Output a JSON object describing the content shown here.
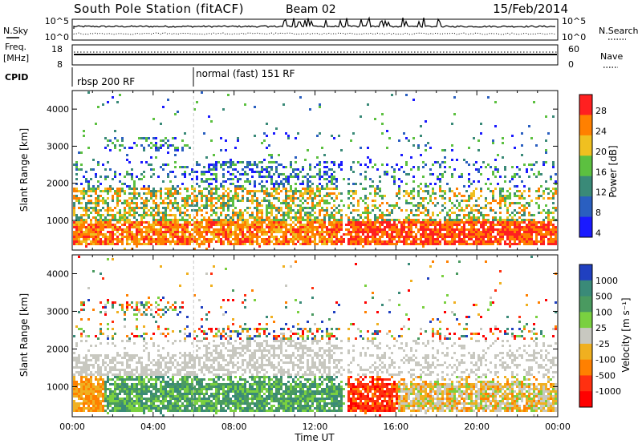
{
  "header": {
    "station": "South Pole Station (fitACF)",
    "beam": "Beam 02",
    "date": "15/Feb/2014"
  },
  "side_labels": {
    "nsky": "N.Sky",
    "freq_line1": "Freq.",
    "freq_line2": "[MHz]",
    "cpid": "CPID",
    "nsearch": "N.Search",
    "nave": "Nave"
  },
  "top_panel": {
    "left_ticks": [
      "10^5",
      "10^0"
    ],
    "right_ticks": [
      "10^5",
      "10^0"
    ]
  },
  "freq_panel": {
    "left_ticks": [
      "18",
      "8"
    ],
    "right_ticks": [
      "60",
      "0"
    ]
  },
  "cpid_panel": {
    "segments": [
      {
        "label": "rbsp 200 RF",
        "start_hour": 0
      },
      {
        "label": "normal (fast) 151 RF",
        "start_hour": 6
      }
    ]
  },
  "chart_data": [
    {
      "type": "heatmap",
      "name": "power",
      "ylabel": "Slant Range [km]",
      "xlabel": "Time UT",
      "xlim": [
        0,
        24
      ],
      "ylim": [
        200,
        4500
      ],
      "x_tick_labels": [
        "00:00",
        "04:00",
        "08:00",
        "12:00",
        "16:00",
        "20:00",
        "00:00"
      ],
      "y_tick_labels": [
        "1000",
        "2000",
        "3000",
        "4000"
      ],
      "y_ticks": [
        1000,
        2000,
        3000,
        4000
      ],
      "colorbar": {
        "label": "Power [dB]",
        "tick_labels": [
          "4",
          "8",
          "12",
          "16",
          "20",
          "24",
          "28"
        ],
        "colors": [
          "#1a1aff",
          "#2a5fc0",
          "#3a8a78",
          "#5cc040",
          "#f0c020",
          "#ff8000",
          "#ff2020"
        ]
      }
    },
    {
      "type": "heatmap",
      "name": "velocity",
      "ylabel": "Slant Range [km]",
      "xlabel": "Time UT",
      "xlim": [
        0,
        24
      ],
      "ylim": [
        200,
        4500
      ],
      "x_tick_labels": [
        "00:00",
        "04:00",
        "08:00",
        "12:00",
        "16:00",
        "20:00",
        "00:00"
      ],
      "y_tick_labels": [
        "1000",
        "2000",
        "3000",
        "4000"
      ],
      "y_ticks": [
        1000,
        2000,
        3000,
        4000
      ],
      "colorbar": {
        "label": "Velocity [m s⁻¹]",
        "tick_labels": [
          "1000",
          "500",
          "100",
          "25",
          "-25",
          "-100",
          "-500",
          "-1000"
        ],
        "colors": [
          "#2040c0",
          "#3a8a78",
          "#4a9a60",
          "#7ad040",
          "#c8c8c0",
          "#f0b020",
          "#ff8000",
          "#ff3010",
          "#ff0000"
        ]
      }
    }
  ],
  "xlabel": "Time UT"
}
